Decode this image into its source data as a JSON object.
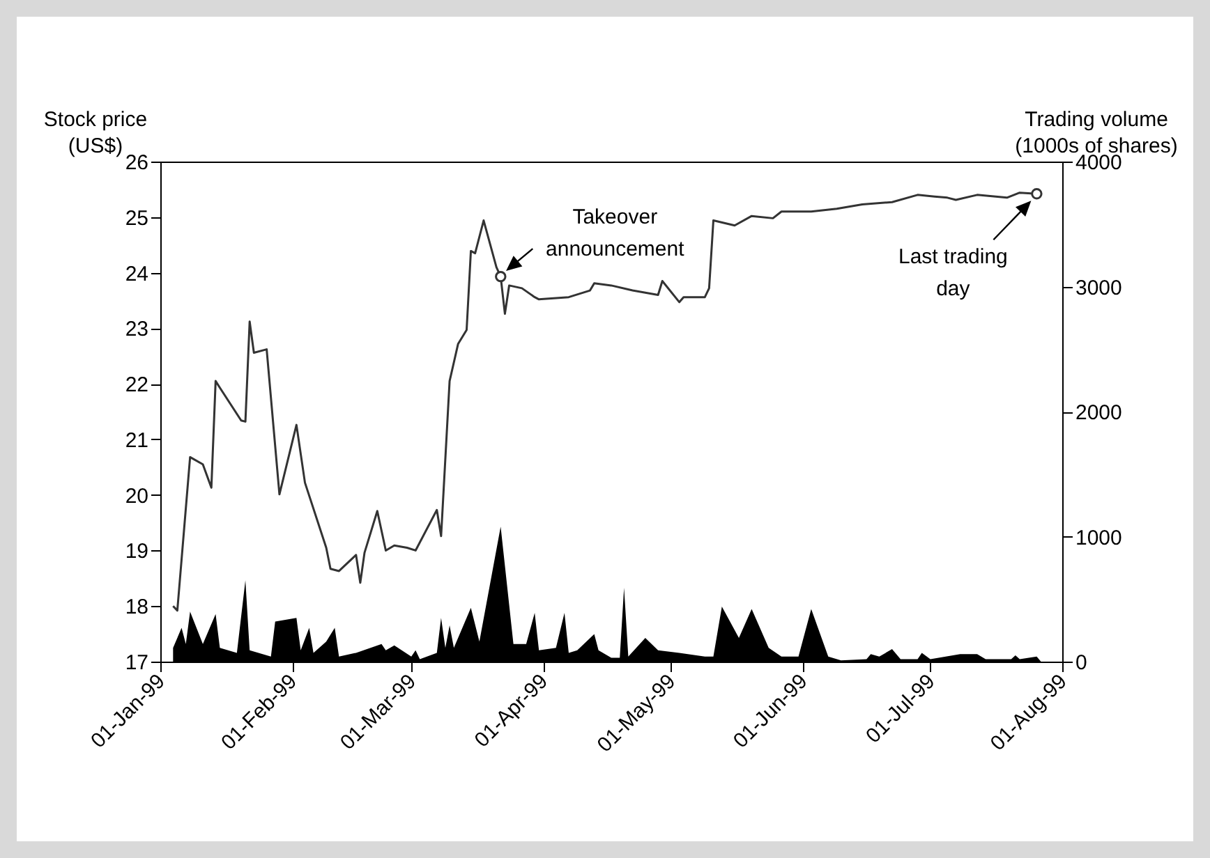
{
  "chart_data": {
    "type": "line",
    "ylabel": "Stock price\n(US$)",
    "y2label": "Trading volume\n(1000s of shares)",
    "xlim": [
      "1999-01-01",
      "1999-08-01"
    ],
    "xticks": [
      {
        "value": "1999-01-01",
        "label": "01-Jan-99"
      },
      {
        "value": "1999-02-01",
        "label": "01-Feb-99"
      },
      {
        "value": "1999-03-01",
        "label": "01-Mar-99"
      },
      {
        "value": "1999-04-01",
        "label": "01-Apr-99"
      },
      {
        "value": "1999-05-01",
        "label": "01-May-99"
      },
      {
        "value": "1999-06-01",
        "label": "01-Jun-99"
      },
      {
        "value": "1999-07-01",
        "label": "01-Jul-99"
      },
      {
        "value": "1999-08-01",
        "label": "01-Aug-99"
      }
    ],
    "ylim": [
      17,
      26
    ],
    "yticks": [
      17,
      18,
      19,
      20,
      21,
      22,
      23,
      24,
      25,
      26
    ],
    "y2lim": [
      0,
      4000
    ],
    "y2ticks": [
      0,
      1000,
      2000,
      3000,
      4000
    ],
    "series": [
      {
        "type": "area",
        "axis": "y2",
        "color": "#000000",
        "x": [
          "1999-01-04",
          "1999-01-06",
          "1999-01-07",
          "1999-01-08",
          "1999-01-11",
          "1999-01-14",
          "1999-01-15",
          "1999-01-19",
          "1999-01-21",
          "1999-01-22",
          "1999-01-27",
          "1999-01-28",
          "1999-02-02",
          "1999-02-03",
          "1999-02-05",
          "1999-02-06",
          "1999-02-09",
          "1999-02-11",
          "1999-02-12",
          "1999-02-16",
          "1999-02-22",
          "1999-02-23",
          "1999-02-25",
          "1999-03-01",
          "1999-03-02",
          "1999-03-03",
          "1999-03-07",
          "1999-03-08",
          "1999-03-09",
          "1999-03-10",
          "1999-03-11",
          "1999-03-15",
          "1999-03-17",
          "1999-03-22",
          "1999-03-25",
          "1999-03-28",
          "1999-03-30",
          "1999-03-31",
          "1999-04-04",
          "1999-04-06",
          "1999-04-07",
          "1999-04-09",
          "1999-04-13",
          "1999-04-14",
          "1999-04-17",
          "1999-04-19",
          "1999-04-20",
          "1999-04-21",
          "1999-04-25",
          "1999-04-28",
          "1999-05-03",
          "1999-05-09",
          "1999-05-11",
          "1999-05-13",
          "1999-05-17",
          "1999-05-20",
          "1999-05-24",
          "1999-05-27",
          "1999-05-31",
          "1999-06-03",
          "1999-06-07",
          "1999-06-10",
          "1999-06-16",
          "1999-06-17",
          "1999-06-19",
          "1999-06-22",
          "1999-06-24",
          "1999-06-28",
          "1999-06-29",
          "1999-07-01",
          "1999-07-08",
          "1999-07-12",
          "1999-07-14",
          "1999-07-20",
          "1999-07-21",
          "1999-07-22",
          "1999-07-26",
          "1999-07-27"
        ],
        "values": [
          110,
          270,
          140,
          400,
          140,
          380,
          110,
          70,
          650,
          90,
          40,
          320,
          350,
          90,
          270,
          70,
          160,
          270,
          40,
          70,
          140,
          90,
          130,
          40,
          90,
          20,
          70,
          350,
          110,
          290,
          110,
          430,
          160,
          1080,
          140,
          140,
          390,
          90,
          110,
          390,
          70,
          90,
          220,
          90,
          30,
          30,
          590,
          40,
          190,
          90,
          70,
          40,
          40,
          440,
          190,
          420,
          110,
          40,
          40,
          420,
          40,
          10,
          20,
          60,
          40,
          100,
          20,
          20,
          70,
          20,
          60,
          60,
          20,
          20,
          50,
          20,
          40,
          0
        ]
      },
      {
        "type": "line",
        "color": "#333333",
        "x": [
          "1999-01-04",
          "1999-01-05",
          "1999-01-08",
          "1999-01-11",
          "1999-01-13",
          "1999-01-14",
          "1999-01-15",
          "1999-01-20",
          "1999-01-21",
          "1999-01-22",
          "1999-01-23",
          "1999-01-26",
          "1999-01-29",
          "1999-02-02",
          "1999-02-04",
          "1999-02-09",
          "1999-02-10",
          "1999-02-12",
          "1999-02-16",
          "1999-02-17",
          "1999-02-18",
          "1999-02-21",
          "1999-02-23",
          "1999-02-25",
          "1999-02-28",
          "1999-03-02",
          "1999-03-07",
          "1999-03-08",
          "1999-03-10",
          "1999-03-12",
          "1999-03-14",
          "1999-03-15",
          "1999-03-16",
          "1999-03-18",
          "1999-03-21",
          "1999-03-22",
          "1999-03-23",
          "1999-03-24",
          "1999-03-27",
          "1999-03-30",
          "1999-03-31",
          "1999-04-07",
          "1999-04-12",
          "1999-04-13",
          "1999-04-17",
          "1999-04-22",
          "1999-04-28",
          "1999-04-29",
          "1999-05-03",
          "1999-05-04",
          "1999-05-09",
          "1999-05-10",
          "1999-05-11",
          "1999-05-16",
          "1999-05-20",
          "1999-05-25",
          "1999-05-27",
          "1999-06-03",
          "1999-06-09",
          "1999-06-15",
          "1999-06-22",
          "1999-06-28",
          "1999-07-02",
          "1999-07-05",
          "1999-07-07",
          "1999-07-12",
          "1999-07-19",
          "1999-07-22",
          "1999-07-26"
        ],
        "values": [
          18.0,
          17.92,
          20.68,
          20.55,
          20.13,
          22.05,
          21.93,
          21.34,
          21.32,
          23.12,
          22.56,
          22.62,
          20.01,
          21.26,
          20.22,
          19.05,
          18.67,
          18.63,
          18.92,
          18.42,
          18.96,
          19.71,
          19.0,
          19.09,
          19.05,
          19.0,
          19.73,
          19.26,
          22.05,
          22.72,
          22.97,
          24.39,
          24.35,
          24.94,
          24.1,
          23.93,
          23.26,
          23.77,
          23.72,
          23.56,
          23.52,
          23.56,
          23.68,
          23.81,
          23.77,
          23.68,
          23.6,
          23.85,
          23.47,
          23.56,
          23.56,
          23.72,
          24.94,
          24.85,
          25.02,
          24.98,
          25.1,
          25.1,
          25.15,
          25.23,
          25.27,
          25.4,
          25.37,
          25.35,
          25.31,
          25.4,
          25.35,
          25.44,
          25.42
        ]
      }
    ],
    "annotations": [
      {
        "text": "Takeover\nannouncement",
        "x": "1999-03-22",
        "y": 23.93
      },
      {
        "text": "Last trading\nday",
        "x": "1999-07-26",
        "y": 25.42
      }
    ]
  }
}
